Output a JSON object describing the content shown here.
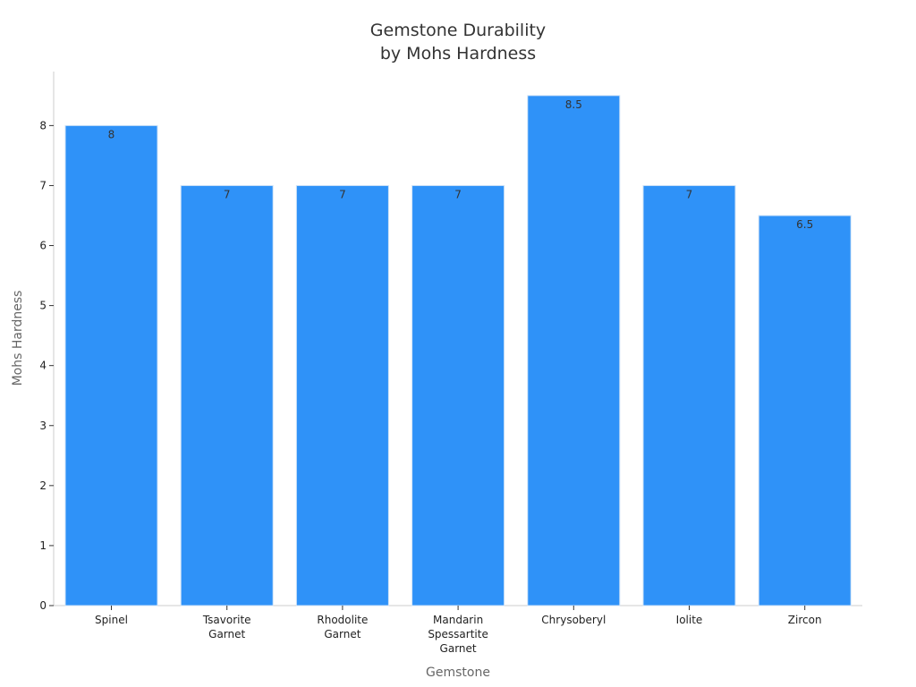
{
  "chart_data": {
    "type": "bar",
    "title": [
      "Gemstone Durability",
      "by Mohs Hardness"
    ],
    "xlabel": "Gemstone",
    "ylabel": "Mohs Hardness",
    "categories": [
      [
        "Spinel"
      ],
      [
        "Tsavorite",
        "Garnet"
      ],
      [
        "Rhodolite",
        "Garnet"
      ],
      [
        "Mandarin",
        "Spessartite",
        "Garnet"
      ],
      [
        "Chrysoberyl"
      ],
      [
        "Iolite"
      ],
      [
        "Zircon"
      ]
    ],
    "values": [
      8,
      7,
      7,
      7,
      8.5,
      7,
      6.5
    ],
    "data_labels": [
      "8",
      "7",
      "7",
      "7",
      "8.5",
      "7",
      "6.5"
    ],
    "ylim": [
      0,
      8.9
    ],
    "yticks": [
      0,
      1,
      2,
      3,
      4,
      5,
      6,
      7,
      8
    ],
    "grid": false,
    "legend": "none",
    "colors": {
      "bar": "#2f92f8",
      "bar_edge": "#cfe3f7",
      "axis": "#cccccc"
    }
  }
}
